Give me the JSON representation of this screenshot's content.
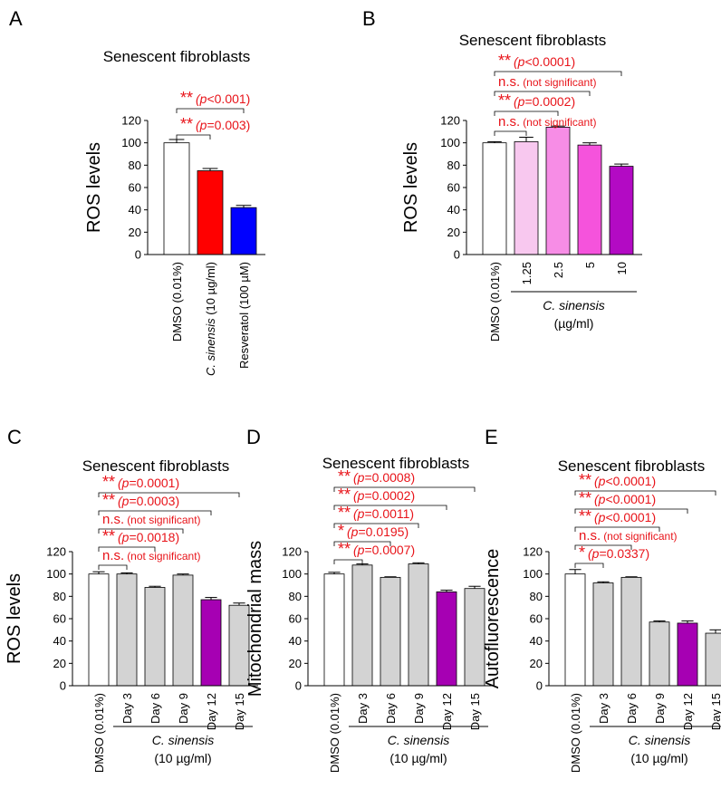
{
  "figure": {
    "group_label_name": "C. sinensis",
    "group_label_unit_b": "(µg/ml)",
    "group_label_unit_cde": "(10 µg/ml)"
  },
  "chart_data": [
    {
      "panel": "A",
      "type": "bar",
      "title": "Senescent fibroblasts",
      "ylabel": "ROS levels",
      "ylim": [
        0,
        120
      ],
      "yticks": [
        0,
        20,
        40,
        60,
        80,
        100,
        120
      ],
      "categories": [
        "DMSO (0.01%)",
        "C. sinensis (10 µg/ml)",
        "Resveratol (100 µM)"
      ],
      "category_italic_prefix": [
        "",
        "C. sinensis",
        ""
      ],
      "values": [
        100,
        75,
        42
      ],
      "errors": [
        3,
        2,
        2
      ],
      "colors": [
        "#ffffff",
        "#ff0000",
        "#0000ff"
      ],
      "significance": [
        {
          "from": 0,
          "to": 2,
          "stars": "**",
          "text": "p<0.001"
        },
        {
          "from": 0,
          "to": 1,
          "stars": "**",
          "text": "p=0.003"
        }
      ]
    },
    {
      "panel": "B",
      "type": "bar",
      "title": "Senescent fibroblasts",
      "ylabel": "ROS levels",
      "ylim": [
        0,
        120
      ],
      "yticks": [
        0,
        20,
        40,
        60,
        80,
        100,
        120
      ],
      "categories": [
        "DMSO (0.01%)",
        "1.25",
        "2.5",
        "5",
        "10"
      ],
      "values": [
        100,
        101,
        114,
        98,
        79
      ],
      "errors": [
        1,
        4,
        1,
        2,
        2
      ],
      "colors": [
        "#ffffff",
        "#f8c8ef",
        "#f78de6",
        "#f553dc",
        "#b30ac4"
      ],
      "group": {
        "from": 1,
        "to": 4
      },
      "significance": [
        {
          "from": 0,
          "to": 4,
          "stars": "**",
          "text": "p<0.0001"
        },
        {
          "from": 0,
          "to": 3,
          "stars": "n.s.",
          "text": "(not significant)"
        },
        {
          "from": 0,
          "to": 2,
          "stars": "**",
          "text": "p=0.0002"
        },
        {
          "from": 0,
          "to": 1,
          "stars": "n.s.",
          "text": "(not significant)"
        }
      ]
    },
    {
      "panel": "C",
      "type": "bar",
      "title": "Senescent fibroblasts",
      "ylabel": "ROS levels",
      "ylim": [
        0,
        120
      ],
      "yticks": [
        0,
        20,
        40,
        60,
        80,
        100,
        120
      ],
      "categories": [
        "DMSO (0.01%)",
        "Day 3",
        "Day 6",
        "Day 9",
        "Day 12",
        "Day 15"
      ],
      "values": [
        100,
        100,
        88,
        99,
        77,
        72
      ],
      "errors": [
        2,
        1,
        1,
        1,
        2,
        2
      ],
      "colors": [
        "#ffffff",
        "#d3d3d3",
        "#d3d3d3",
        "#d3d3d3",
        "#a600b3",
        "#d3d3d3"
      ],
      "group": {
        "from": 1,
        "to": 5
      },
      "significance": [
        {
          "from": 0,
          "to": 5,
          "stars": "**",
          "text": "p=0.0001"
        },
        {
          "from": 0,
          "to": 4,
          "stars": "**",
          "text": "p=0.0003"
        },
        {
          "from": 0,
          "to": 3,
          "stars": "n.s.",
          "text": "(not significant)"
        },
        {
          "from": 0,
          "to": 2,
          "stars": "**",
          "text": "p=0.0018"
        },
        {
          "from": 0,
          "to": 1,
          "stars": "n.s.",
          "text": "(not significant)"
        }
      ]
    },
    {
      "panel": "D",
      "type": "bar",
      "title": "Senescent fibroblasts",
      "ylabel": "Mitochondrial mass",
      "ylim": [
        0,
        120
      ],
      "yticks": [
        0,
        20,
        40,
        60,
        80,
        100,
        120
      ],
      "categories": [
        "DMSO (0.01%)",
        "Day 3",
        "Day 6",
        "Day 9",
        "Day 12",
        "Day 15"
      ],
      "values": [
        100,
        108,
        97,
        109,
        84,
        87
      ],
      "errors": [
        1.5,
        1,
        0.5,
        1,
        1.5,
        2
      ],
      "colors": [
        "#ffffff",
        "#d3d3d3",
        "#d3d3d3",
        "#d3d3d3",
        "#a600b3",
        "#d3d3d3"
      ],
      "group": {
        "from": 1,
        "to": 5
      },
      "significance": [
        {
          "from": 0,
          "to": 5,
          "stars": "**",
          "text": "p=0.0008"
        },
        {
          "from": 0,
          "to": 4,
          "stars": "**",
          "text": "p=0.0002"
        },
        {
          "from": 0,
          "to": 3,
          "stars": "**",
          "text": "p=0.0011"
        },
        {
          "from": 0,
          "to": 2,
          "stars": "*",
          "text": "p=0.0195"
        },
        {
          "from": 0,
          "to": 1,
          "stars": "**",
          "text": "p=0.0007"
        }
      ]
    },
    {
      "panel": "E",
      "type": "bar",
      "title": "Senescent fibroblasts",
      "ylabel": "Autofluorescence",
      "ylim": [
        0,
        120
      ],
      "yticks": [
        0,
        20,
        40,
        60,
        80,
        100,
        120
      ],
      "categories": [
        "DMSO (0.01%)",
        "Day 3",
        "Day 6",
        "Day 9",
        "Day 12",
        "Day 15"
      ],
      "values": [
        100,
        92,
        97,
        57,
        56,
        47
      ],
      "errors": [
        4,
        1,
        0.5,
        1,
        2,
        3
      ],
      "colors": [
        "#ffffff",
        "#d3d3d3",
        "#d3d3d3",
        "#d3d3d3",
        "#a600b3",
        "#d3d3d3"
      ],
      "group": {
        "from": 1,
        "to": 5
      },
      "significance": [
        {
          "from": 0,
          "to": 5,
          "stars": "**",
          "text": "p<0.0001"
        },
        {
          "from": 0,
          "to": 4,
          "stars": "**",
          "text": "p<0.0001"
        },
        {
          "from": 0,
          "to": 3,
          "stars": "**",
          "text": "p<0.0001"
        },
        {
          "from": 0,
          "to": 2,
          "stars": "n.s.",
          "text": "(not significant)"
        },
        {
          "from": 0,
          "to": 1,
          "stars": "*",
          "text": "p=0.0337"
        }
      ]
    }
  ]
}
